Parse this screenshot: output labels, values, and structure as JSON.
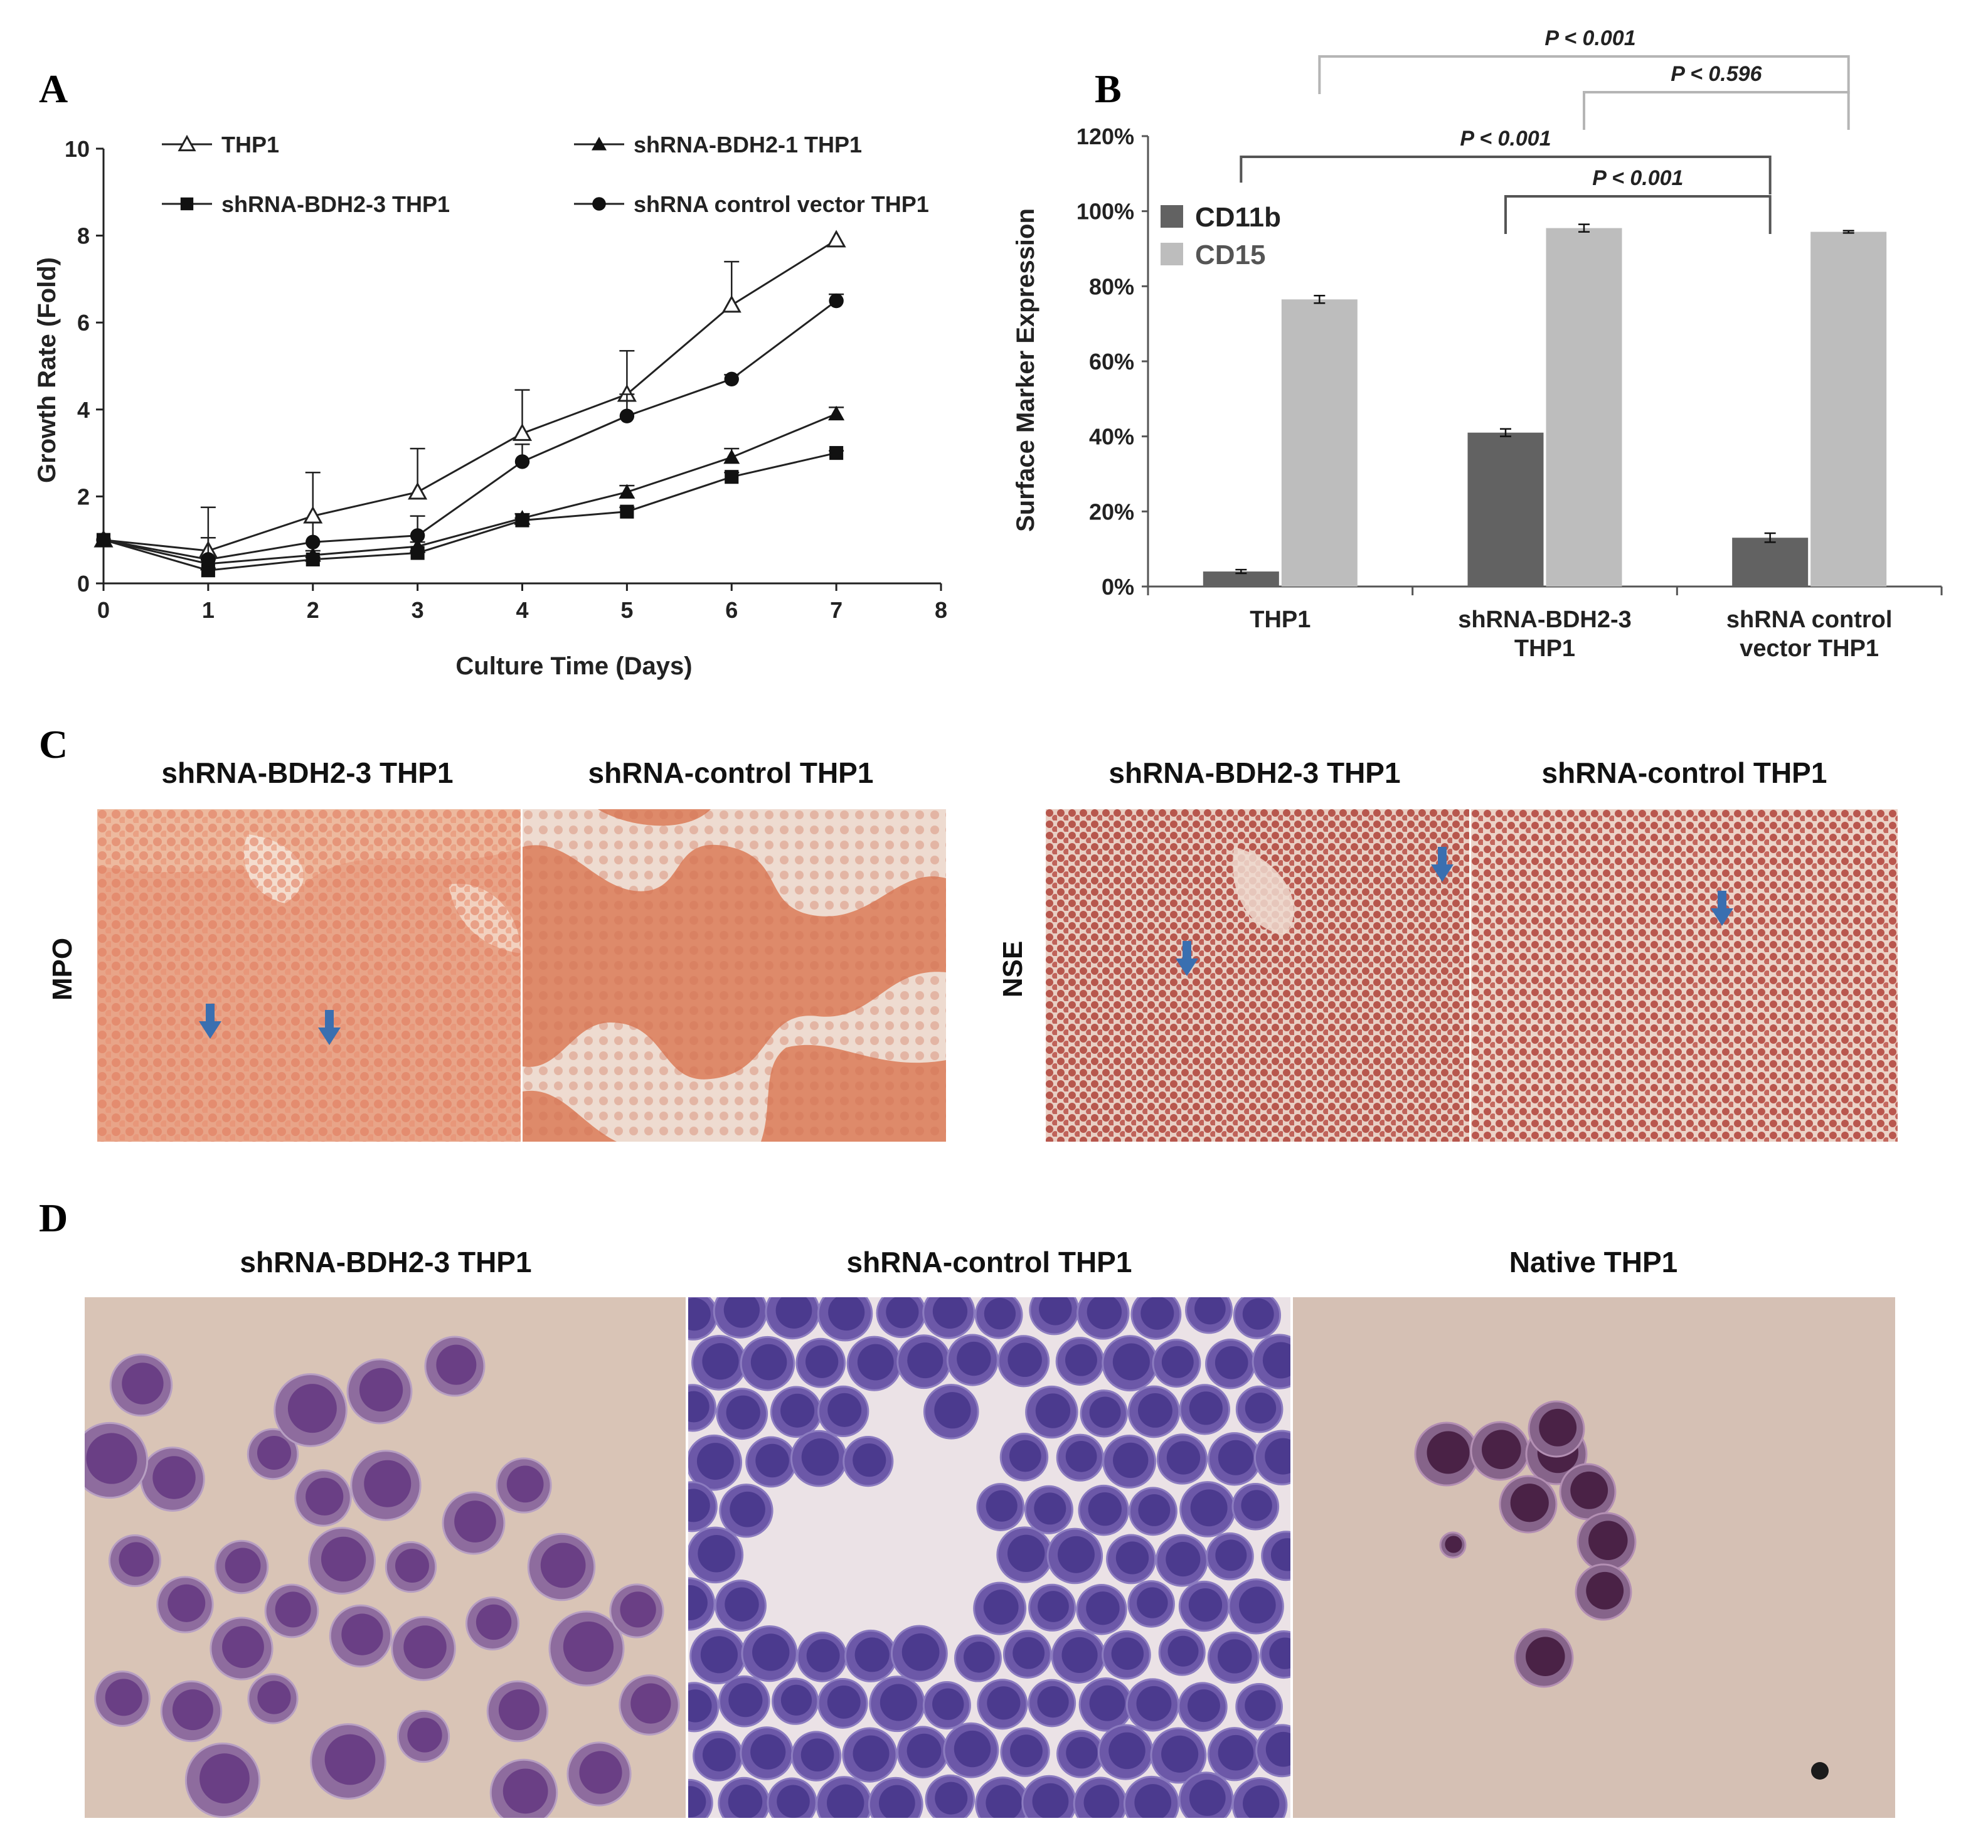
{
  "panels": {
    "a": "A",
    "b": "B",
    "c": "C",
    "d": "D"
  },
  "chart_data": [
    {
      "type": "line",
      "xlabel": "Culture Time (Days)",
      "ylabel": "Growth Rate (Fold)",
      "xlim": [
        0,
        8
      ],
      "ylim": [
        0,
        10
      ],
      "xticks": [
        "0",
        "1",
        "2",
        "3",
        "4",
        "5",
        "6",
        "7",
        "8"
      ],
      "yticks": [
        "0",
        "2",
        "4",
        "6",
        "8",
        "10"
      ],
      "grid": false,
      "legend_position": "top",
      "series": [
        {
          "name": "THP1",
          "marker": "open-triangle",
          "x": [
            0,
            1,
            2,
            3,
            4,
            5,
            6,
            7
          ],
          "y": [
            1.0,
            0.75,
            1.55,
            2.1,
            3.45,
            4.35,
            6.4,
            7.9
          ],
          "err": [
            0,
            1.0,
            1.0,
            1.0,
            1.0,
            1.0,
            1.0,
            0
          ]
        },
        {
          "name": "shRNA-BDH2-1 THP1",
          "marker": "filled-triangle",
          "x": [
            0,
            1,
            2,
            3,
            4,
            5,
            6,
            7
          ],
          "y": [
            1.0,
            0.45,
            0.65,
            0.85,
            1.5,
            2.1,
            2.9,
            3.9
          ],
          "err": [
            0,
            0.1,
            0.1,
            0.1,
            0.1,
            0.15,
            0.2,
            0.15
          ]
        },
        {
          "name": "shRNA-BDH2-3 THP1",
          "marker": "filled-square",
          "x": [
            0,
            1,
            2,
            3,
            4,
            5,
            6,
            7
          ],
          "y": [
            1.0,
            0.3,
            0.55,
            0.7,
            1.45,
            1.65,
            2.45,
            3.0
          ],
          "err": [
            0,
            0.05,
            0.05,
            0.05,
            0.05,
            0.1,
            0.1,
            0.05
          ]
        },
        {
          "name": "shRNA control vector THP1",
          "marker": "filled-circle",
          "x": [
            0,
            1,
            2,
            3,
            4,
            5,
            6,
            7
          ],
          "y": [
            1.0,
            0.55,
            0.95,
            1.1,
            2.8,
            3.85,
            4.7,
            6.5
          ],
          "err": [
            0,
            0.5,
            0.45,
            0.45,
            0.4,
            0.5,
            0.1,
            0.15
          ]
        }
      ]
    },
    {
      "type": "bar",
      "ylabel": "Surface Marker Expression",
      "ylim": [
        0,
        120
      ],
      "yticks": [
        "0%",
        "20%",
        "40%",
        "60%",
        "80%",
        "100%",
        "120%"
      ],
      "categories": [
        [
          "THP1"
        ],
        [
          "shRNA-BDH2-3",
          "THP1"
        ],
        [
          "shRNA control",
          "vector THP1"
        ]
      ],
      "legend_position": "top-left",
      "series": [
        {
          "name": "CD11b",
          "color": "#626262",
          "values": [
            4,
            41,
            13
          ],
          "err": [
            0.5,
            1,
            1.2
          ]
        },
        {
          "name": "CD15",
          "color": "#bdbdbd",
          "values": [
            76.5,
            95.5,
            94.5
          ],
          "err": [
            1,
            1,
            0.3
          ]
        }
      ],
      "annotations": [
        {
          "text": "P < 0.001",
          "from": "THP1 CD15",
          "to": "shRNA control vector THP1 CD15"
        },
        {
          "text": "P < 0.596",
          "from": "shRNA-BDH2-3 THP1 CD15",
          "to": "shRNA control vector THP1 CD15"
        },
        {
          "text": "P < 0.001",
          "from": "THP1 CD11b",
          "to": "shRNA control vector THP1 CD11b"
        },
        {
          "text": "P < 0.001",
          "from": "shRNA-BDH2-3 THP1 CD11b",
          "to": "shRNA control vector THP1 CD11b"
        }
      ]
    }
  ],
  "panel_c": {
    "left_title": "shRNA-BDH2-3 THP1",
    "right_title": "shRNA-control THP1",
    "mpo_label": "MPO",
    "nse_label": "NSE",
    "nse_left_title": "shRNA-BDH2-3 THP1",
    "nse_right_title": "shRNA-control THP1"
  },
  "panel_d": {
    "titles": [
      "shRNA-BDH2-3 THP1",
      "shRNA-control THP1",
      "Native THP1"
    ]
  },
  "colors": {
    "mpo_stain": "#e2835f",
    "mpo_background": "#f1dcd0",
    "nse_stain": "#b95a50",
    "nse_background": "#e6c4b8",
    "arrow": "#3a6fb0",
    "cell_cytoplasm": "#8a5a9c",
    "cell_nucleus": "#4d2a6e",
    "slide_background": "#d9c3b2"
  }
}
